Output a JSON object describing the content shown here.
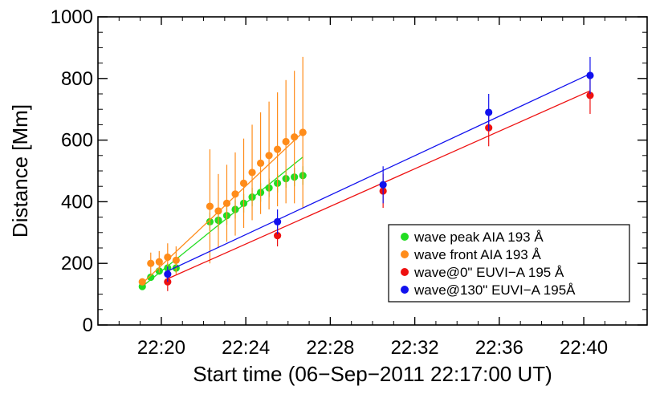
{
  "chart_data": {
    "type": "scatter",
    "xlabel": "Start time (06−Sep−2011 22:17:00 UT)",
    "ylabel": "Distance [Mm]",
    "xlim": [
      "22:17:00",
      "22:43:00"
    ],
    "ylim": [
      0,
      1000
    ],
    "x_ticks": [
      "22:20",
      "22:24",
      "22:28",
      "22:32",
      "22:36",
      "22:40"
    ],
    "y_ticks": [
      0,
      200,
      400,
      600,
      800,
      1000
    ],
    "legend_position": "bottom-right",
    "grid": false,
    "series": [
      {
        "name": "wave peak AIA 193 Å",
        "color": "#22dd22",
        "x": [
          "22:19:06",
          "22:19:30",
          "22:19:54",
          "22:20:18",
          "22:20:42",
          "22:22:18",
          "22:22:42",
          "22:23:06",
          "22:23:30",
          "22:23:54",
          "22:24:18",
          "22:24:42",
          "22:25:06",
          "22:25:30",
          "22:25:54",
          "22:26:18",
          "22:26:42"
        ],
        "y": [
          125,
          155,
          175,
          185,
          185,
          335,
          340,
          355,
          375,
          395,
          415,
          430,
          445,
          460,
          475,
          480,
          485
        ],
        "err": [
          0,
          0,
          0,
          15,
          15,
          30,
          30,
          30,
          30,
          30,
          30,
          30,
          30,
          30,
          30,
          30,
          30
        ],
        "fit": {
          "x": [
            "22:19:06",
            "22:26:42"
          ],
          "y": [
            125,
            545
          ]
        }
      },
      {
        "name": "wave front AIA 193 Å",
        "color": "#ff8c1a",
        "x": [
          "22:19:06",
          "22:19:30",
          "22:19:54",
          "22:20:18",
          "22:20:42",
          "22:22:18",
          "22:22:42",
          "22:23:06",
          "22:23:30",
          "22:23:54",
          "22:24:18",
          "22:24:42",
          "22:25:06",
          "22:25:30",
          "22:25:54",
          "22:26:18",
          "22:26:42"
        ],
        "y": [
          140,
          200,
          205,
          220,
          210,
          385,
          370,
          395,
          425,
          460,
          495,
          525,
          550,
          570,
          595,
          610,
          625
        ],
        "err": [
          0,
          35,
          35,
          45,
          45,
          185,
          120,
          125,
          135,
          145,
          155,
          165,
          175,
          185,
          200,
          215,
          245
        ],
        "fit": {
          "x": [
            "22:19:06",
            "22:26:42"
          ],
          "y": [
            135,
            625
          ]
        }
      },
      {
        "name": "wave@0\" EUVI−A 195 Å",
        "color": "#ee1111",
        "x": [
          "22:20:18",
          "22:25:30",
          "22:30:30",
          "22:35:30",
          "22:40:18"
        ],
        "y": [
          140,
          290,
          435,
          640,
          745
        ],
        "err": [
          30,
          35,
          55,
          60,
          60
        ],
        "fit": {
          "x": [
            "22:20:18",
            "22:40:18"
          ],
          "y": [
            150,
            760
          ]
        }
      },
      {
        "name": "wave@130\" EUVI−A 195Å",
        "color": "#1111ee",
        "x": [
          "22:20:18",
          "22:25:30",
          "22:30:30",
          "22:35:30",
          "22:40:18"
        ],
        "y": [
          165,
          335,
          455,
          690,
          810
        ],
        "err": [
          25,
          40,
          60,
          60,
          60
        ],
        "fit": {
          "x": [
            "22:20:18",
            "22:40:18"
          ],
          "y": [
            175,
            815
          ]
        }
      }
    ]
  }
}
